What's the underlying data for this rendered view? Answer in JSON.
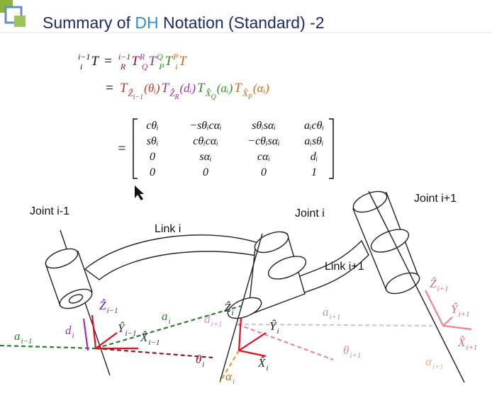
{
  "title": {
    "parts": [
      "Summary of ",
      "DH",
      " Notation (Standard) -2"
    ],
    "colors": [
      "#1f2a6b",
      "#2f8fd8",
      "#1f2a6b"
    ]
  },
  "equations": {
    "line1": [
      {
        "text": "T",
        "pre_sup": "i−1",
        "pre_sub": "i",
        "color": "#111111"
      },
      {
        "text": "=",
        "color": "#111111"
      },
      {
        "text": "T",
        "pre_sup": "i−1",
        "pre_sub": "R",
        "color": "#8b1a2b"
      },
      {
        "text": "T",
        "pre_sup": "R",
        "pre_sub": "Q",
        "color": "#9b30b0"
      },
      {
        "text": "T",
        "pre_sup": "Q",
        "pre_sub": "P",
        "color": "#3a8a2a"
      },
      {
        "text": "T",
        "pre_sup": "P",
        "pre_sub": "i",
        "color": "#d2691e"
      }
    ],
    "line2": [
      {
        "text": "=",
        "color": "#111111"
      },
      {
        "text": "T",
        "sub": "Ẑ",
        "sub_sub": "i−1",
        "arg": "(θᵢ)",
        "color": "#c0392b"
      },
      {
        "text": "T",
        "sub": "Ẑ",
        "sub_sub": "R",
        "arg": "(dᵢ)",
        "color": "#9b30b0"
      },
      {
        "text": "T",
        "sub": "X̂",
        "sub_sub": "Q",
        "arg": "(aᵢ)",
        "color": "#3a8a2a"
      },
      {
        "text": "T",
        "sub": "X̂",
        "sub_sub": "P",
        "arg": "(αᵢ)",
        "color": "#d2691e"
      }
    ],
    "matrix_equals": "=",
    "matrix": [
      [
        "cθᵢ",
        "−sθᵢcαᵢ",
        "sθᵢsαᵢ",
        "aᵢcθᵢ"
      ],
      [
        "sθᵢ",
        "cθᵢcαᵢ",
        "−cθᵢsαᵢ",
        "aᵢsθᵢ"
      ],
      [
        "0",
        "sαᵢ",
        "cαᵢ",
        "dᵢ"
      ],
      [
        "0",
        "0",
        "0",
        "1"
      ]
    ]
  },
  "diagram": {
    "labels": [
      "Joint i-1",
      "Joint i",
      "Joint i+1",
      "Link i",
      "Link i+1"
    ],
    "symbols": [
      {
        "text": "a",
        "sub": "i−1",
        "color": "#2e7d32"
      },
      {
        "text": "d",
        "sub": "i",
        "color": "#9b30b0"
      },
      {
        "text": "a",
        "sub": "i",
        "color": "#2e7d32"
      },
      {
        "text": "Ẑ",
        "sub": "i−1",
        "color": "#6a1b9a"
      },
      {
        "text": "Ŷ",
        "sub": "i−1",
        "color": "#333333"
      },
      {
        "text": "X̂",
        "sub": "i−1",
        "color": "#333333"
      },
      {
        "text": "θ",
        "sub": "i",
        "color": "#8b1a2b"
      },
      {
        "text": "Ẑ",
        "sub": "i",
        "color": "#222222"
      },
      {
        "text": "d",
        "sub": "i+1",
        "color": "#d58fd5"
      },
      {
        "text": "Ŷ",
        "sub": "i",
        "color": "#222222"
      },
      {
        "text": "X̂",
        "sub": "i",
        "color": "#222222"
      },
      {
        "text": "α",
        "sub": "i",
        "color": "#d2691e"
      },
      {
        "text": "a",
        "sub": "i+1",
        "color": "#b0a0a0"
      },
      {
        "text": "θ",
        "sub": "i+1",
        "color": "#e08aa0"
      },
      {
        "text": "Ẑ",
        "sub": "i+1",
        "color": "#d07090"
      },
      {
        "text": "Ŷ",
        "sub": "i+1",
        "color": "#d07090"
      },
      {
        "text": "X̂",
        "sub": "i+1",
        "color": "#d07090"
      },
      {
        "text": "α",
        "sub": "i+1",
        "color": "#f0b080"
      }
    ]
  }
}
